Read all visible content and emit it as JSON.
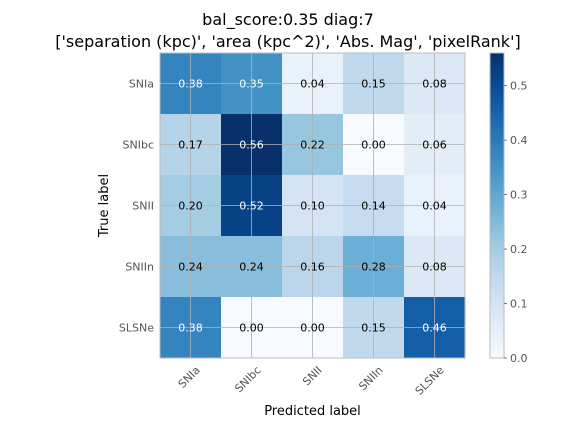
{
  "chart_data": {
    "type": "heatmap",
    "title_lines": [
      "bal_score:0.35 diag:7",
      "['separation (kpc)', 'area (kpc^2)', 'Abs. Mag', 'pixelRank']"
    ],
    "xlabel": "Predicted label",
    "ylabel": "True label",
    "x_categories": [
      "SNIa",
      "SNIbc",
      "SNII",
      "SNIIn",
      "SLSNe"
    ],
    "y_categories": [
      "SNIa",
      "SNIbc",
      "SNII",
      "SNIIn",
      "SLSNe"
    ],
    "values": [
      [
        0.38,
        0.35,
        0.04,
        0.15,
        0.08
      ],
      [
        0.17,
        0.56,
        0.22,
        0.0,
        0.06
      ],
      [
        0.2,
        0.52,
        0.1,
        0.14,
        0.04
      ],
      [
        0.24,
        0.24,
        0.16,
        0.28,
        0.08
      ],
      [
        0.38,
        0.0,
        0.0,
        0.15,
        0.46
      ]
    ],
    "value_format": "0.00",
    "colormap": "Blues",
    "vmin": 0.0,
    "vmax": 0.56,
    "text_threshold": 0.28,
    "colorbar": {
      "ticks": [
        0.0,
        0.1,
        0.2,
        0.3,
        0.4,
        0.5
      ],
      "tick_labels": [
        "0.0",
        "0.1",
        "0.2",
        "0.3",
        "0.4",
        "0.5"
      ]
    },
    "grid": true
  },
  "colors": {
    "text_dark": "#000000",
    "text_light": "#ffffff",
    "tick_label": "#555555",
    "grid": "#b0b0b0",
    "frame": "#bbbbbb"
  }
}
